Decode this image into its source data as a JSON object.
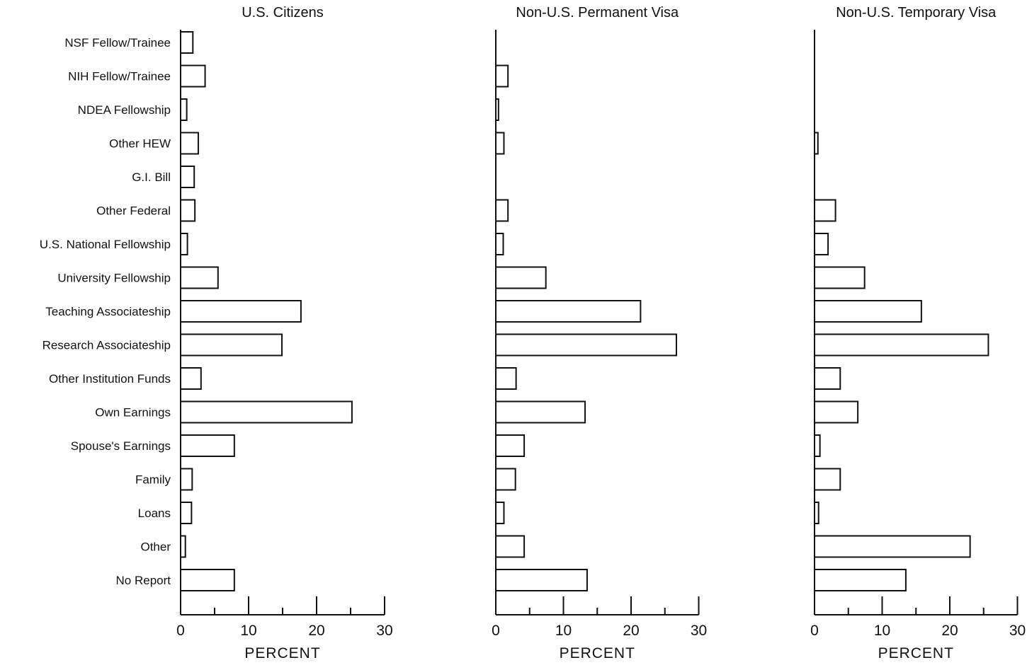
{
  "chart_data": {
    "type": "bar",
    "orientation": "horizontal",
    "categories": [
      "NSF Fellow/Trainee",
      "NIH Fellow/Trainee",
      "NDEA Fellowship",
      "Other HEW",
      "G.I. Bill",
      "Other Federal",
      "U.S. National Fellowship",
      "University Fellowship",
      "Teaching Associateship",
      "Research Associateship",
      "Other Institution Funds",
      "Own Earnings",
      "Spouse's Earnings",
      "Family",
      "Loans",
      "Other",
      "No Report"
    ],
    "xlabel": "PERCENT",
    "xlim": [
      0,
      30
    ],
    "xticks": [
      0,
      10,
      20,
      30
    ],
    "grid": false,
    "legend": "none",
    "colors": {
      "bar_fill": "#ffffff",
      "bar_stroke": "#111111",
      "axis": "#111111"
    },
    "panels": [
      {
        "title": "U.S. Citizens",
        "values": [
          1.8,
          3.6,
          0.9,
          2.6,
          2.0,
          2.1,
          1.0,
          5.5,
          17.7,
          14.9,
          3.0,
          25.2,
          7.9,
          1.7,
          1.6,
          0.7,
          7.9
        ]
      },
      {
        "title": "Non-U.S. Permanent Visa",
        "values": [
          null,
          1.8,
          0.4,
          1.2,
          null,
          1.8,
          1.1,
          7.4,
          21.4,
          26.7,
          3.0,
          13.2,
          4.2,
          2.9,
          1.2,
          4.2,
          13.5
        ]
      },
      {
        "title": "Non-U.S. Temporary Visa",
        "values": [
          null,
          null,
          null,
          0.5,
          null,
          3.1,
          2.0,
          7.4,
          15.8,
          25.7,
          3.8,
          6.4,
          0.8,
          3.8,
          0.6,
          23.0,
          13.5
        ]
      }
    ]
  }
}
